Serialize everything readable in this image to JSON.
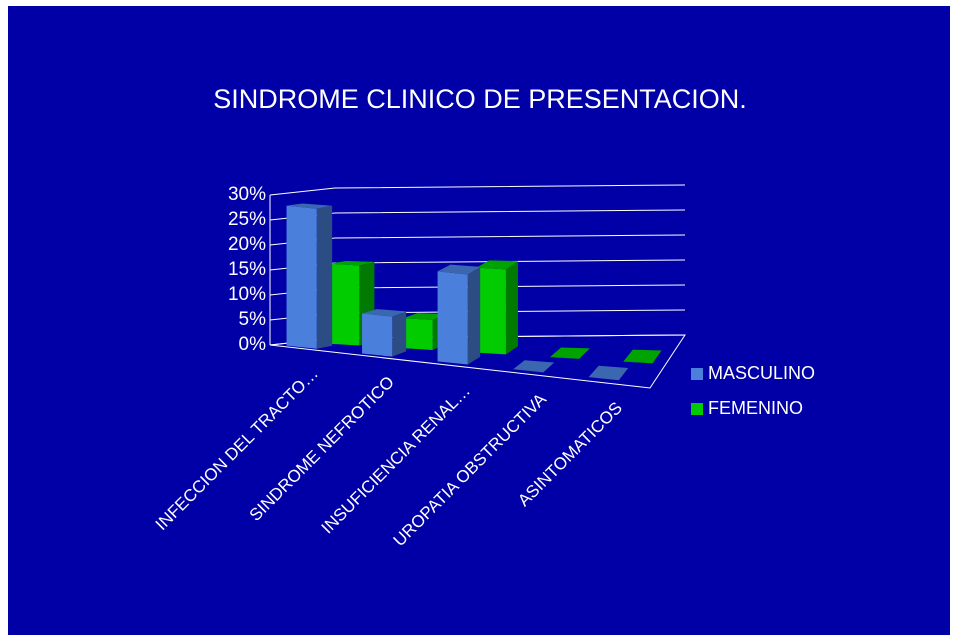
{
  "chart_data": {
    "type": "bar3d",
    "title": "SINDROME  CLINICO  DE PRESENTACION.",
    "categories": [
      "INFECCION DEL TRACTO…",
      "SINDROME NEFROTICO",
      "INSUFICIENCIA RENAL…",
      "UROPATIA OBSTRUCTIVA",
      "ASINTOMATICOS"
    ],
    "series": [
      {
        "name": "MASCULINO",
        "color": "#4a7fdc",
        "values": [
          28,
          8,
          18,
          0,
          0
        ]
      },
      {
        "name": "FEMENINO",
        "color": "#00cc00",
        "values": [
          16,
          6,
          17,
          0,
          0
        ]
      }
    ],
    "ylim": [
      0,
      30
    ],
    "yticks": [
      {
        "value": 0,
        "label": "0%"
      },
      {
        "value": 5,
        "label": "5%"
      },
      {
        "value": 10,
        "label": "10%"
      },
      {
        "value": 15,
        "label": "15%"
      },
      {
        "value": 20,
        "label": "20%"
      },
      {
        "value": 25,
        "label": "25%"
      },
      {
        "value": 30,
        "label": "30%"
      }
    ],
    "grid": true,
    "legend": "right"
  }
}
